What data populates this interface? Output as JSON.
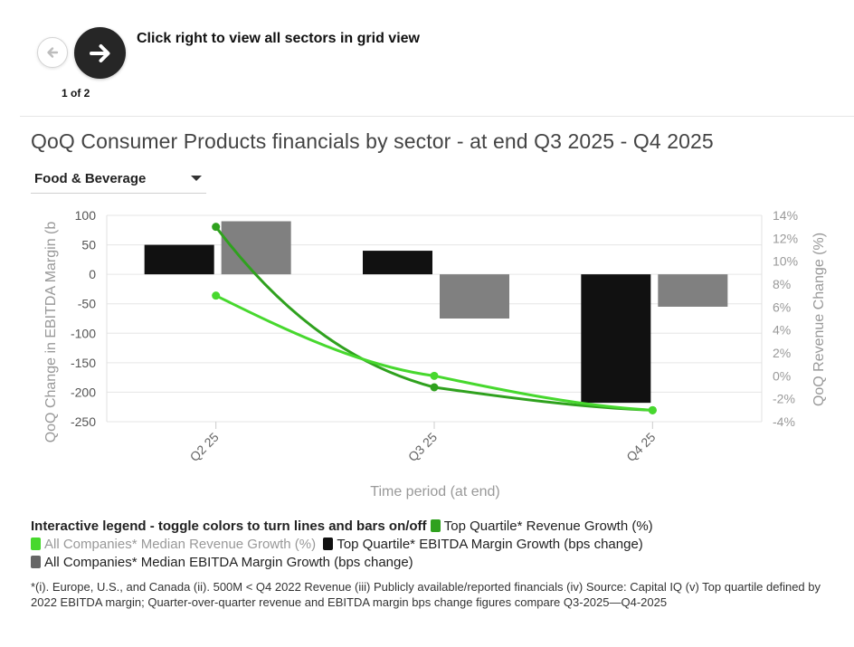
{
  "nav": {
    "hint": "Click right to view all sectors in grid view",
    "page_indicator": "1 of 2"
  },
  "title": "QoQ Consumer Products financials by sector - at end Q3 2025 - Q4 2025",
  "selector": {
    "value": "Food & Beverage"
  },
  "colors": {
    "top_quartile_revenue": "#2fa11e",
    "all_median_revenue": "#47d82e",
    "top_quartile_ebitda": "#111111",
    "all_median_ebitda": "#808080"
  },
  "chart_data": {
    "type": "bar+line",
    "categories": [
      "Q2 25",
      "Q3 25",
      "Q4 25"
    ],
    "xlabel": "Time period (at end)",
    "ylabel_left": "QoQ Change in EBITDA Margin (b",
    "ylabel_right": "QoQ Revenue Change (%)",
    "ylim_left": [
      -250,
      100
    ],
    "ylim_right": [
      -4,
      14
    ],
    "left_ticks": [
      100,
      50,
      0,
      -50,
      -100,
      -150,
      -200,
      -250
    ],
    "left_tick_labels": [
      "100",
      "50",
      "0",
      "-50",
      "-100",
      "-150",
      "-200",
      "-250"
    ],
    "right_ticks": [
      14,
      12,
      10,
      8,
      6,
      4,
      2,
      0,
      -2,
      -4
    ],
    "right_tick_labels": [
      "14%",
      "12%",
      "10%",
      "8%",
      "6%",
      "4%",
      "2%",
      "0%",
      "-2%",
      "-4%"
    ],
    "bar_series": [
      {
        "name": "Top Quartile* EBITDA Margin Growth (bps change)",
        "values": [
          50,
          40,
          -218
        ]
      },
      {
        "name": "All Companies* Median EBITDA Margin Growth (bps change)",
        "values": [
          90,
          -75,
          -55
        ]
      }
    ],
    "line_series": [
      {
        "name": "Top Quartile* Revenue Growth (%)",
        "values": [
          13,
          -1,
          -3
        ]
      },
      {
        "name": "All Companies* Median Revenue Growth (%)",
        "values": [
          7,
          0,
          -3
        ]
      }
    ]
  },
  "legend": {
    "title": "Interactive legend - toggle colors to turn lines and bars on/off",
    "items": [
      "Top Quartile* Revenue Growth (%)",
      "All Companies* Median Revenue Growth (%)",
      "Top Quartile* EBITDA Margin Growth (bps change)",
      "All Companies* Median EBITDA Margin Growth (bps change)"
    ]
  },
  "footnote": "*(i). Europe, U.S., and Canada (ii). 500M < Q4 2022 Revenue (iii) Publicly available/reported financials (iv) Source: Capital IQ (v) Top quartile defined by 2022 EBITDA margin; Quarter-over-quarter revenue and EBITDA margin bps change figures compare Q3-2025—Q4-2025"
}
